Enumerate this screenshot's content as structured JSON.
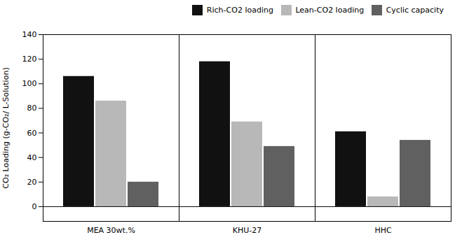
{
  "chart_data": {
    "type": "bar",
    "categories": [
      "MEA 30wt.%",
      "KHU-27",
      "HHC"
    ],
    "series": [
      {
        "name": "Rich-CO2 loading",
        "color": "#111111",
        "values": [
          106,
          118,
          61
        ]
      },
      {
        "name": "Lean-CO2 loading",
        "color": "#b8b8b8",
        "values": [
          86,
          69,
          8
        ]
      },
      {
        "name": "Cyclic capacity",
        "color": "#606060",
        "values": [
          20,
          49,
          54
        ]
      }
    ],
    "ylabel": "CO₂ Loading (g-CO₂/ L-Solution)",
    "ylim": [
      -12,
      140
    ],
    "yticks": [
      0,
      20,
      40,
      60,
      80,
      100,
      120,
      140
    ],
    "grid": false,
    "legend": "upper right"
  }
}
